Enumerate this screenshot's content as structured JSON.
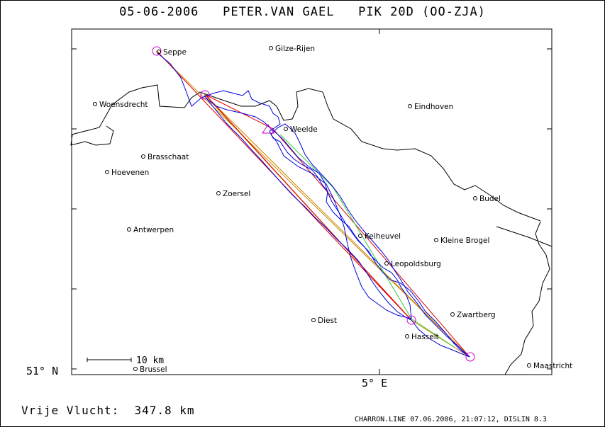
{
  "title": {
    "date": "05-06-2006",
    "pilot": "PETER.VAN GAEL",
    "glider": "PIK 20D (OO-ZJA)"
  },
  "axes": {
    "lat_label": "51° N",
    "lon_label": "5° E"
  },
  "scale_bar": {
    "label": "10 km"
  },
  "footer": {
    "distance": "Vrije Vlucht:  347.8 km",
    "generator": "CHARRON.LINE 07.06.2006, 21:07:12, DISLIN 8.3"
  },
  "places": [
    {
      "name": "Seppe"
    },
    {
      "name": "Gilze-Rijen"
    },
    {
      "name": "Woensdrecht"
    },
    {
      "name": "Eindhoven"
    },
    {
      "name": "Weelde"
    },
    {
      "name": "Brasschaat"
    },
    {
      "name": "Hoevenen"
    },
    {
      "name": "Zoersel"
    },
    {
      "name": "Budel"
    },
    {
      "name": "Antwerpen"
    },
    {
      "name": "Kleine Brogel"
    },
    {
      "name": "Keiheuvel"
    },
    {
      "name": "Leopoldsburg"
    },
    {
      "name": "Zwartberg"
    },
    {
      "name": "Diest"
    },
    {
      "name": "Hasselt"
    },
    {
      "name": "Maastricht"
    },
    {
      "name": "Brussel"
    }
  ],
  "colors": {
    "border": "#000000",
    "track": "#0000dd",
    "task_red": "#dd0000",
    "task_orange": "#cc8800",
    "task_green": "#33cc33",
    "turnpoint": "#cc00cc"
  }
}
